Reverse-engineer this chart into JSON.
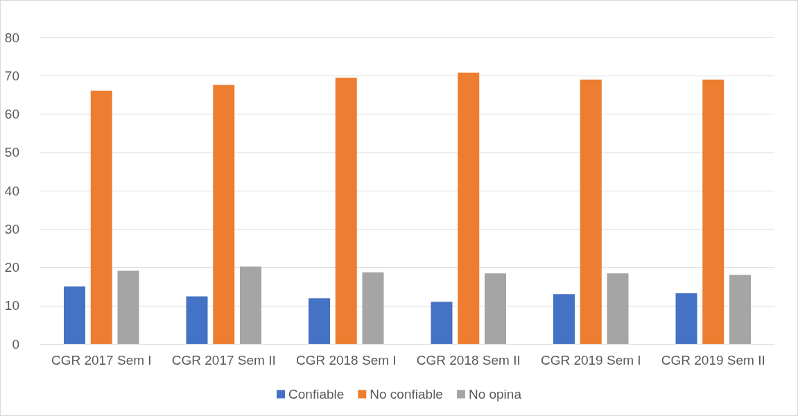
{
  "chart_data": {
    "type": "bar",
    "categories": [
      "CGR 2017 Sem I",
      "CGR 2017 Sem II",
      "CGR 2018 Sem I",
      "CGR 2018 Sem II",
      "CGR 2019 Sem I",
      "CGR 2019 Sem II"
    ],
    "series": [
      {
        "name": "Confiable",
        "color": "#4472c4",
        "values": [
          15,
          12.4,
          11.9,
          11,
          13,
          13.2
        ]
      },
      {
        "name": "No confiable",
        "color": "#ed7d31",
        "values": [
          66.1,
          67.6,
          69.5,
          70.8,
          69,
          69
        ]
      },
      {
        "name": "No opina",
        "color": "#a5a5a5",
        "values": [
          19.1,
          20.2,
          18.7,
          18.4,
          18.4,
          18
        ]
      }
    ],
    "ylim": [
      0,
      80
    ],
    "yticks": [
      0,
      10,
      20,
      30,
      40,
      50,
      60,
      70,
      80
    ],
    "grid": "y",
    "legend": "bottom"
  }
}
